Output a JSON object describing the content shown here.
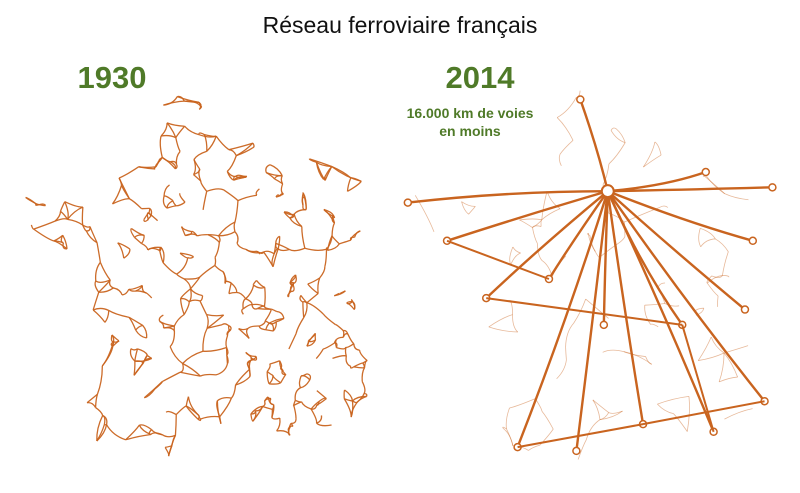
{
  "title": "Réseau ferroviaire français",
  "maps": [
    {
      "year": "1930"
    },
    {
      "year": "2014",
      "note": [
        "16.000 km de voies",
        "en moins"
      ]
    }
  ]
}
